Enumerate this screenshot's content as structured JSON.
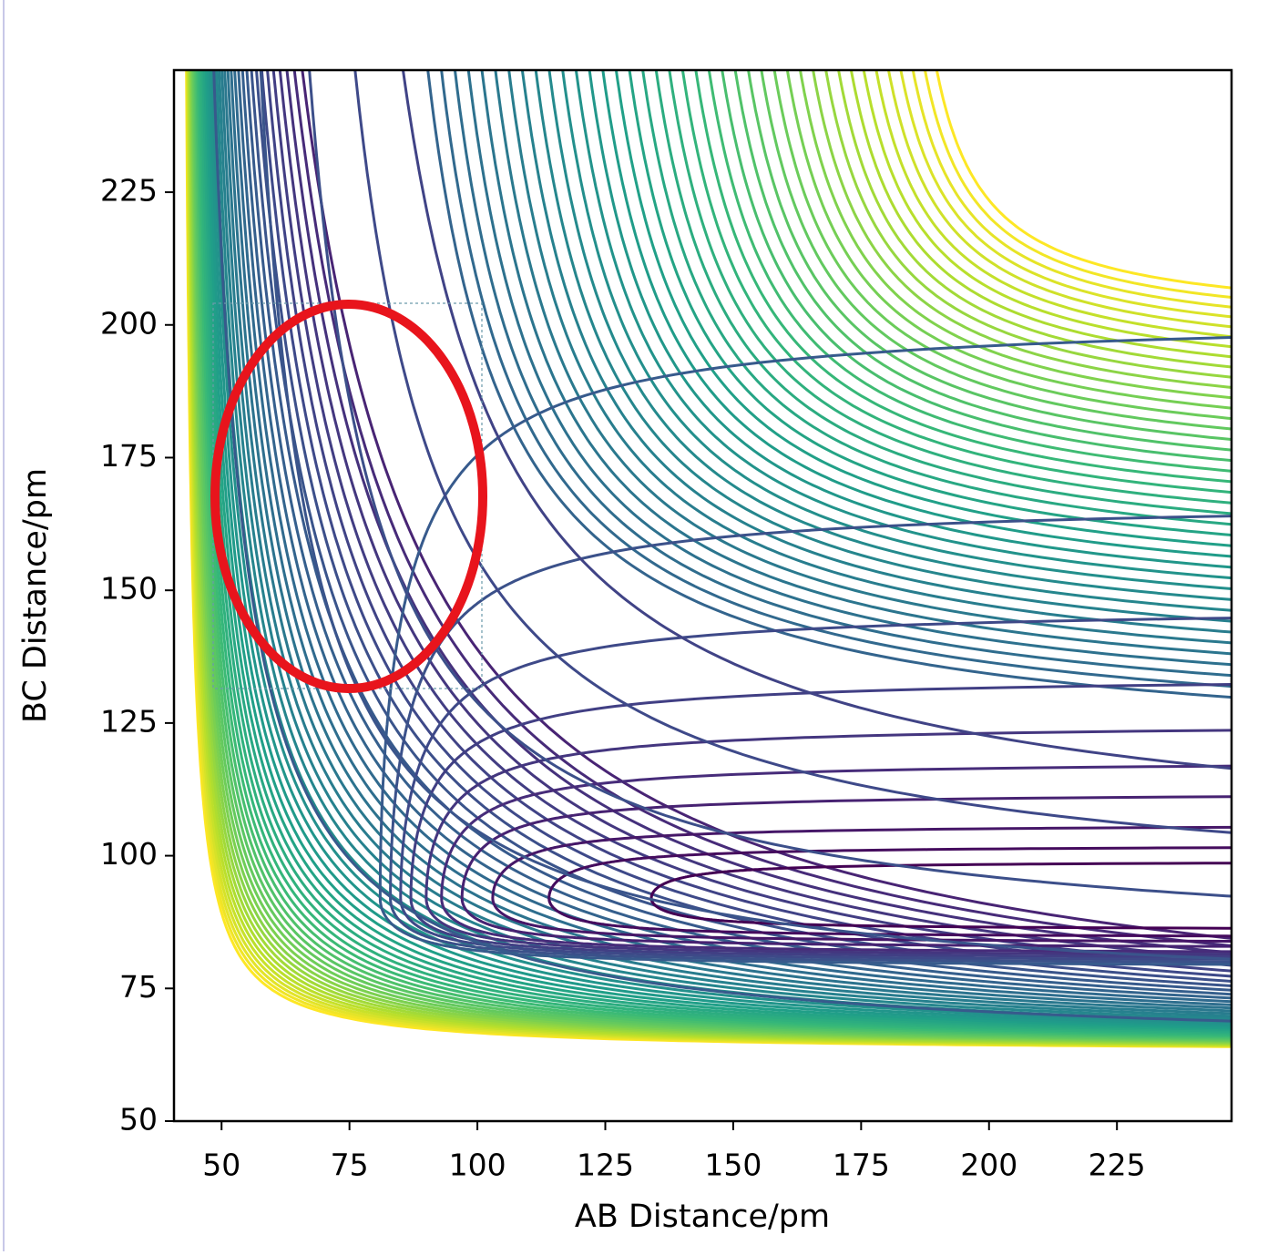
{
  "chart_data": {
    "type": "contour",
    "xlabel": "AB Distance/pm",
    "ylabel": "BC Distance/pm",
    "xlim": [
      40.7,
      247.4
    ],
    "ylim": [
      50,
      248
    ],
    "xticks": [
      50,
      75,
      100,
      125,
      150,
      175,
      200,
      225
    ],
    "yticks": [
      50,
      75,
      100,
      125,
      150,
      175,
      200,
      225
    ],
    "colormap": "viridis"
  }
}
